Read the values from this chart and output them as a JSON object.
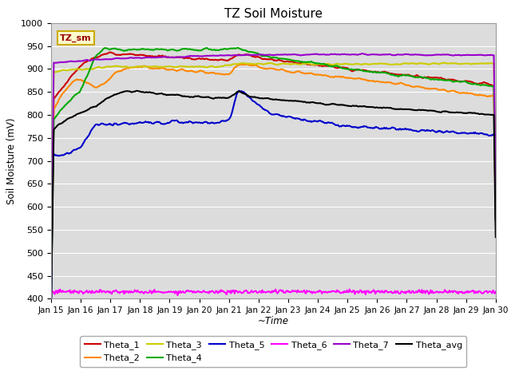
{
  "title": "TZ Soil Moisture",
  "xlabel": "~Time",
  "ylabel": "Soil Moisture (mV)",
  "ylim": [
    400,
    1000
  ],
  "yticks": [
    400,
    450,
    500,
    550,
    600,
    650,
    700,
    750,
    800,
    850,
    900,
    950,
    1000
  ],
  "x_labels": [
    "Jan 15",
    "Jan 16",
    "Jan 17",
    "Jan 18",
    "Jan 19",
    "Jan 20",
    "Jan 21",
    "Jan 22",
    "Jan 23",
    "Jan 24",
    "Jan 25",
    "Jan 26",
    "Jan 27",
    "Jan 28",
    "Jan 29",
    "Jan 30"
  ],
  "background_color": "#dcdcdc",
  "figure_bg": "#ffffff",
  "legend_label": "TZ_sm",
  "legend_bg": "#ffffcc",
  "legend_border": "#ccaa00",
  "series_colors": {
    "Theta_1": "#cc0000",
    "Theta_2": "#ff8800",
    "Theta_3": "#cccc00",
    "Theta_4": "#00aa00",
    "Theta_5": "#0000cc",
    "Theta_6": "#ff00ff",
    "Theta_7": "#9900cc",
    "Theta_avg": "#000000"
  },
  "line_width": 1.5
}
